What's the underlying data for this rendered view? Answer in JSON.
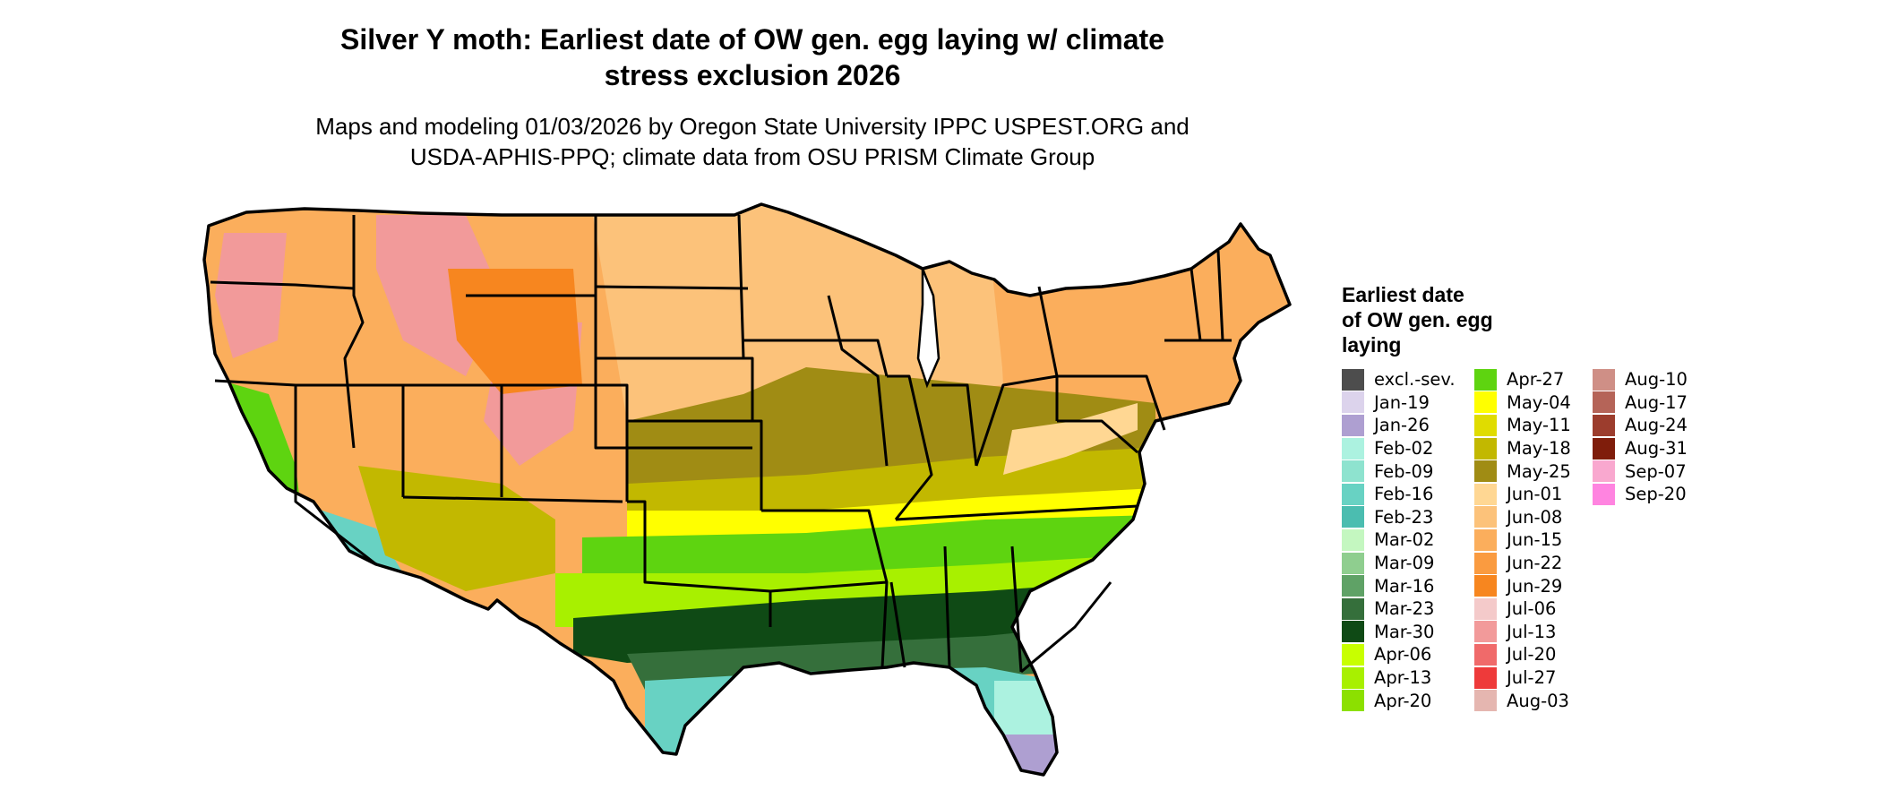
{
  "header": {
    "title_lines": [
      "Silver Y moth: Earliest date of OW gen. egg laying w/ climate",
      "stress exclusion 2026"
    ],
    "subtitle_lines": [
      "Maps and modeling 01/03/2026 by Oregon State University IPPC USPEST.ORG and",
      "USDA-APHIS-PPQ; climate data from OSU PRISM Climate Group"
    ]
  },
  "legend": {
    "title_lines": [
      "Earliest date",
      "of OW gen. egg",
      "laying"
    ],
    "columns": [
      [
        {
          "label": "excl.-sev.",
          "color": "#4d4d4d"
        },
        {
          "label": "Jan-19",
          "color": "#dcd3ec"
        },
        {
          "label": "Jan-26",
          "color": "#ae9fd1"
        },
        {
          "label": "Feb-02",
          "color": "#acf2e0"
        },
        {
          "label": "Feb-09",
          "color": "#8ee3cf"
        },
        {
          "label": "Feb-16",
          "color": "#68d2c3"
        },
        {
          "label": "Feb-23",
          "color": "#4bbdb0"
        },
        {
          "label": "Mar-02",
          "color": "#c4f7c0"
        },
        {
          "label": "Mar-09",
          "color": "#8fce8f"
        },
        {
          "label": "Mar-16",
          "color": "#5fa266"
        },
        {
          "label": "Mar-23",
          "color": "#356f3b"
        },
        {
          "label": "Mar-30",
          "color": "#0f4a15"
        },
        {
          "label": "Apr-06",
          "color": "#c8ff00"
        },
        {
          "label": "Apr-13",
          "color": "#a8f000"
        },
        {
          "label": "Apr-20",
          "color": "#8ce000"
        }
      ],
      [
        {
          "label": "Apr-27",
          "color": "#5ed410"
        },
        {
          "label": "May-04",
          "color": "#ffff00"
        },
        {
          "label": "May-11",
          "color": "#e0dc00"
        },
        {
          "label": "May-18",
          "color": "#c2b800"
        },
        {
          "label": "May-25",
          "color": "#a08c14"
        },
        {
          "label": "Jun-01",
          "color": "#ffd793"
        },
        {
          "label": "Jun-08",
          "color": "#fcc27a"
        },
        {
          "label": "Jun-15",
          "color": "#fbae5c"
        },
        {
          "label": "Jun-22",
          "color": "#fa9b40"
        },
        {
          "label": "Jun-29",
          "color": "#f7861f"
        },
        {
          "label": "Jul-06",
          "color": "#f4caca"
        },
        {
          "label": "Jul-13",
          "color": "#f29a9a"
        },
        {
          "label": "Jul-20",
          "color": "#f06a6a"
        },
        {
          "label": "Jul-27",
          "color": "#ee3a3a"
        },
        {
          "label": "Aug-03",
          "color": "#e5b6b0"
        }
      ],
      [
        {
          "label": "Aug-10",
          "color": "#cf8f86"
        },
        {
          "label": "Aug-17",
          "color": "#b56458"
        },
        {
          "label": "Aug-24",
          "color": "#9c3d2d"
        },
        {
          "label": "Aug-31",
          "color": "#7f1d0b"
        },
        {
          "label": "Sep-07",
          "color": "#f9a8cf"
        },
        {
          "label": "Sep-20",
          "color": "#ff84e0"
        }
      ]
    ]
  },
  "map": {
    "colors": {
      "land_orange": "#fbae5c",
      "land_light_orange": "#fcc27a",
      "pale_orange": "#ffd793",
      "deep_orange": "#f7861f",
      "olive": "#a08c14",
      "olive_light": "#c2b800",
      "yellow": "#ffff00",
      "green_bright": "#5ed410",
      "lime": "#a8f000",
      "dark_green": "#0f4a15",
      "mid_green": "#356f3b",
      "teal": "#68d2c3",
      "aqua": "#acf2e0",
      "lavender": "#ae9fd1",
      "pink": "#f29a9a",
      "red": "#ee3a3a",
      "border": "#000000"
    }
  }
}
